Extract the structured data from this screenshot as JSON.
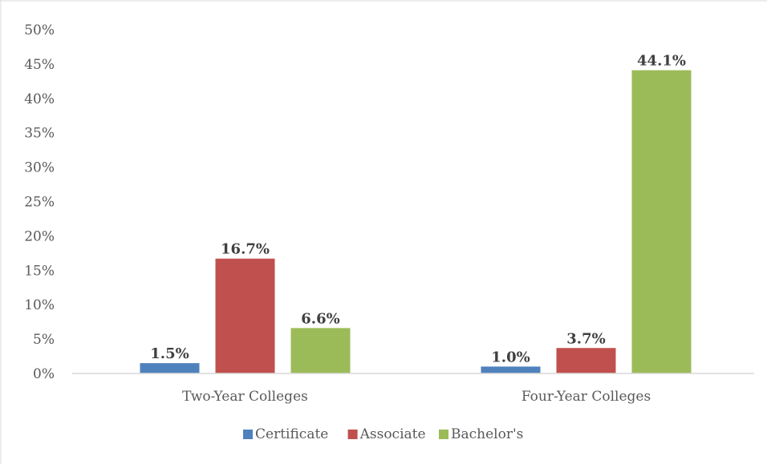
{
  "chart_data": {
    "type": "bar",
    "title": "",
    "categories": [
      "Two-Year Colleges",
      "Four-Year Colleges"
    ],
    "series": [
      {
        "name": "Certificate",
        "values": [
          1.5,
          1.0
        ],
        "labels": [
          "1.5%",
          "1.0%"
        ],
        "color": "#4f81bd"
      },
      {
        "name": "Associate",
        "values": [
          16.7,
          3.7
        ],
        "labels": [
          "16.7%",
          "3.7%"
        ],
        "color": "#c0504d"
      },
      {
        "name": "Bachelor's",
        "values": [
          6.6,
          44.1
        ],
        "labels": [
          "6.6%",
          "44.1%"
        ],
        "color": "#9bbb59"
      }
    ],
    "ylim": [
      0,
      50
    ],
    "yticks": [
      "0%",
      "5%",
      "10%",
      "15%",
      "20%",
      "25%",
      "30%",
      "35%",
      "40%",
      "45%",
      "50%"
    ],
    "xlabel": "",
    "ylabel": "",
    "grid": false,
    "legend_position": "bottom"
  }
}
